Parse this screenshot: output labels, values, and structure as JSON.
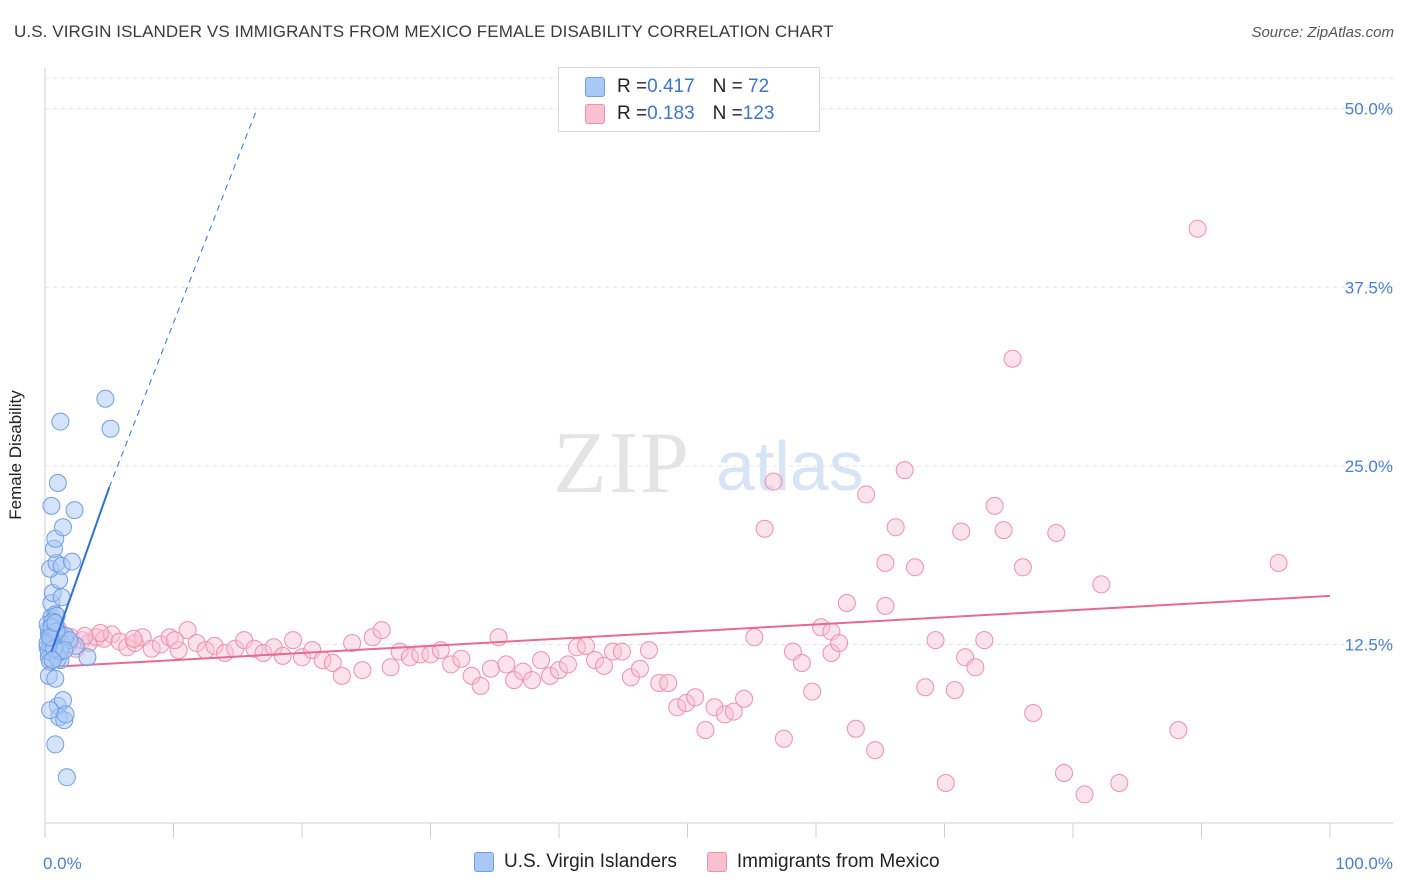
{
  "title": "U.S. VIRGIN ISLANDER VS IMMIGRANTS FROM MEXICO FEMALE DISABILITY CORRELATION CHART",
  "source": "Source: ZipAtlas.com",
  "watermark": {
    "zip": "ZIP",
    "atlas": "atlas"
  },
  "legend": {
    "rows": [
      {
        "r_label": "R = ",
        "r_value": "0.417",
        "n_label": "N = ",
        "n_value": " 72",
        "color": "#a9c8f5",
        "border": "#6f9fe0"
      },
      {
        "r_label": "R = ",
        "r_value": "0.183",
        "n_label": "N = ",
        "n_value": "123",
        "color": "#f9c0d2",
        "border": "#ef8fae"
      }
    ]
  },
  "bottom_legend": [
    "U.S. Virgin Islanders",
    "Immigrants from Mexico"
  ],
  "chart_data": {
    "type": "scatter",
    "ylabel": "Female Disability",
    "xlabel": "",
    "xlim": [
      0,
      100
    ],
    "ylim": [
      0,
      52.5
    ],
    "x_tick_labels": [
      "0.0%",
      "100.0%"
    ],
    "y_ticks": [
      12.5,
      25.0,
      37.5,
      50.0
    ],
    "y_tick_labels": [
      "12.5%",
      "25.0%",
      "37.5%",
      "50.0%"
    ],
    "grid": true,
    "colors": {
      "blue": "#6f9fe0",
      "blue_fill": "#a9c8f5",
      "blue_line": "#2f6fd6",
      "pink": "#ef8fae",
      "pink_fill": "#f9c0d2",
      "pink_line": "#e56a96"
    },
    "series": [
      {
        "name": "U.S. Virgin Islanders",
        "trend": {
          "x": [
            0.5,
            5.0
          ],
          "y": [
            12.0,
            23.5
          ],
          "dashed_to": [
            16.5,
            50.0
          ]
        },
        "points": [
          [
            0.3,
            13.2
          ],
          [
            0.4,
            12.6
          ],
          [
            0.5,
            12.1
          ],
          [
            0.6,
            13.5
          ],
          [
            0.7,
            12.9
          ],
          [
            0.2,
            12.3
          ],
          [
            0.8,
            13.8
          ],
          [
            0.5,
            14.4
          ],
          [
            0.3,
            11.6
          ],
          [
            0.6,
            11.9
          ],
          [
            0.4,
            12.8
          ],
          [
            0.9,
            12.4
          ],
          [
            0.7,
            13.1
          ],
          [
            0.5,
            15.4
          ],
          [
            0.8,
            14.6
          ],
          [
            1.0,
            13.0
          ],
          [
            1.2,
            12.2
          ],
          [
            0.6,
            16.1
          ],
          [
            1.1,
            17.0
          ],
          [
            0.4,
            17.8
          ],
          [
            0.9,
            18.2
          ],
          [
            1.3,
            18.0
          ],
          [
            0.7,
            19.2
          ],
          [
            0.8,
            19.9
          ],
          [
            0.5,
            22.2
          ],
          [
            1.0,
            23.8
          ],
          [
            1.4,
            20.7
          ],
          [
            2.3,
            21.9
          ],
          [
            1.2,
            28.1
          ],
          [
            2.1,
            18.3
          ],
          [
            4.7,
            29.7
          ],
          [
            5.1,
            27.6
          ],
          [
            1.3,
            15.8
          ],
          [
            0.9,
            14.5
          ],
          [
            0.3,
            10.3
          ],
          [
            0.8,
            10.1
          ],
          [
            1.2,
            11.4
          ],
          [
            1.0,
            8.2
          ],
          [
            1.1,
            7.4
          ],
          [
            1.4,
            8.6
          ],
          [
            0.4,
            7.9
          ],
          [
            1.5,
            7.2
          ],
          [
            1.6,
            7.6
          ],
          [
            0.8,
            5.5
          ],
          [
            1.7,
            3.2
          ],
          [
            3.3,
            11.6
          ],
          [
            2.4,
            12.4
          ],
          [
            1.5,
            12.9
          ],
          [
            0.3,
            13.6
          ],
          [
            0.6,
            12.5
          ],
          [
            0.9,
            11.8
          ],
          [
            0.2,
            13.9
          ],
          [
            1.1,
            13.3
          ],
          [
            0.5,
            12.0
          ],
          [
            0.7,
            12.7
          ],
          [
            1.3,
            12.5
          ],
          [
            0.4,
            11.3
          ],
          [
            1.6,
            13.1
          ],
          [
            0.8,
            12.3
          ],
          [
            1.9,
            12.8
          ],
          [
            0.6,
            14.1
          ],
          [
            0.3,
            12.0
          ],
          [
            1.0,
            11.5
          ],
          [
            0.5,
            13.7
          ],
          [
            0.2,
            12.6
          ],
          [
            0.9,
            13.4
          ],
          [
            1.2,
            12.0
          ],
          [
            0.7,
            12.2
          ],
          [
            0.4,
            13.0
          ],
          [
            1.5,
            12.1
          ],
          [
            0.8,
            14.0
          ],
          [
            0.6,
            11.4
          ]
        ]
      },
      {
        "name": "Immigrants from Mexico",
        "trend": {
          "x": [
            0,
            100
          ],
          "y": [
            10.9,
            15.9
          ]
        },
        "points": [
          [
            1.0,
            13.6
          ],
          [
            1.5,
            12.9
          ],
          [
            2.0,
            13.0
          ],
          [
            2.4,
            12.2
          ],
          [
            2.9,
            12.8
          ],
          [
            3.4,
            12.6
          ],
          [
            4.0,
            13.0
          ],
          [
            4.6,
            12.9
          ],
          [
            5.2,
            13.2
          ],
          [
            5.8,
            12.7
          ],
          [
            6.4,
            12.3
          ],
          [
            7.0,
            12.6
          ],
          [
            7.6,
            13.0
          ],
          [
            8.3,
            12.2
          ],
          [
            9.0,
            12.5
          ],
          [
            9.7,
            13.0
          ],
          [
            10.4,
            12.1
          ],
          [
            11.1,
            13.5
          ],
          [
            11.8,
            12.6
          ],
          [
            12.5,
            12.1
          ],
          [
            13.2,
            12.4
          ],
          [
            14.0,
            11.9
          ],
          [
            14.8,
            12.2
          ],
          [
            15.5,
            12.8
          ],
          [
            16.3,
            12.2
          ],
          [
            17.0,
            11.9
          ],
          [
            17.8,
            12.3
          ],
          [
            18.5,
            11.7
          ],
          [
            19.3,
            12.8
          ],
          [
            20.0,
            11.6
          ],
          [
            20.8,
            12.1
          ],
          [
            21.6,
            11.4
          ],
          [
            22.4,
            11.2
          ],
          [
            23.1,
            10.3
          ],
          [
            23.9,
            12.6
          ],
          [
            24.7,
            10.7
          ],
          [
            25.5,
            13.0
          ],
          [
            26.2,
            13.5
          ],
          [
            26.9,
            10.9
          ],
          [
            27.6,
            12.0
          ],
          [
            28.4,
            11.6
          ],
          [
            29.2,
            11.8
          ],
          [
            30.0,
            11.8
          ],
          [
            30.8,
            12.1
          ],
          [
            31.6,
            11.1
          ],
          [
            32.4,
            11.5
          ],
          [
            33.2,
            10.3
          ],
          [
            33.9,
            9.6
          ],
          [
            34.7,
            10.8
          ],
          [
            35.3,
            13.0
          ],
          [
            35.9,
            11.1
          ],
          [
            36.5,
            10.0
          ],
          [
            37.2,
            10.6
          ],
          [
            37.9,
            10.0
          ],
          [
            38.6,
            11.4
          ],
          [
            39.3,
            10.3
          ],
          [
            40.0,
            10.7
          ],
          [
            40.7,
            11.1
          ],
          [
            41.4,
            12.3
          ],
          [
            42.1,
            12.4
          ],
          [
            42.8,
            11.4
          ],
          [
            43.5,
            11.0
          ],
          [
            44.2,
            12.0
          ],
          [
            44.9,
            12.0
          ],
          [
            45.6,
            10.2
          ],
          [
            46.3,
            10.8
          ],
          [
            47.0,
            12.1
          ],
          [
            47.8,
            9.8
          ],
          [
            48.5,
            9.8
          ],
          [
            49.2,
            8.1
          ],
          [
            49.9,
            8.4
          ],
          [
            50.6,
            8.8
          ],
          [
            51.4,
            6.5
          ],
          [
            52.1,
            8.1
          ],
          [
            52.9,
            7.6
          ],
          [
            53.6,
            7.8
          ],
          [
            54.4,
            8.7
          ],
          [
            55.2,
            13.0
          ],
          [
            56.0,
            20.6
          ],
          [
            56.7,
            23.9
          ],
          [
            57.5,
            5.9
          ],
          [
            58.2,
            12.0
          ],
          [
            58.9,
            11.2
          ],
          [
            59.7,
            9.2
          ],
          [
            60.4,
            13.7
          ],
          [
            61.2,
            13.4
          ],
          [
            61.2,
            11.9
          ],
          [
            61.8,
            12.6
          ],
          [
            62.4,
            15.4
          ],
          [
            63.1,
            6.6
          ],
          [
            63.9,
            23.0
          ],
          [
            64.6,
            5.1
          ],
          [
            65.4,
            15.2
          ],
          [
            65.4,
            18.2
          ],
          [
            66.2,
            20.7
          ],
          [
            66.9,
            24.7
          ],
          [
            67.7,
            17.9
          ],
          [
            68.5,
            9.5
          ],
          [
            69.3,
            12.8
          ],
          [
            70.1,
            2.8
          ],
          [
            70.8,
            9.3
          ],
          [
            71.3,
            20.4
          ],
          [
            71.6,
            11.6
          ],
          [
            72.4,
            10.9
          ],
          [
            73.1,
            12.8
          ],
          [
            73.9,
            22.2
          ],
          [
            74.6,
            20.5
          ],
          [
            75.3,
            32.5
          ],
          [
            76.1,
            17.9
          ],
          [
            76.9,
            7.7
          ],
          [
            78.7,
            20.3
          ],
          [
            79.3,
            3.5
          ],
          [
            80.9,
            2.0
          ],
          [
            82.2,
            16.7
          ],
          [
            83.6,
            2.8
          ],
          [
            88.2,
            6.5
          ],
          [
            89.7,
            41.6
          ],
          [
            96.0,
            18.2
          ],
          [
            1.8,
            12.5
          ],
          [
            3.1,
            13.1
          ],
          [
            6.9,
            12.9
          ],
          [
            10.1,
            12.8
          ],
          [
            4.3,
            13.3
          ]
        ]
      }
    ]
  }
}
